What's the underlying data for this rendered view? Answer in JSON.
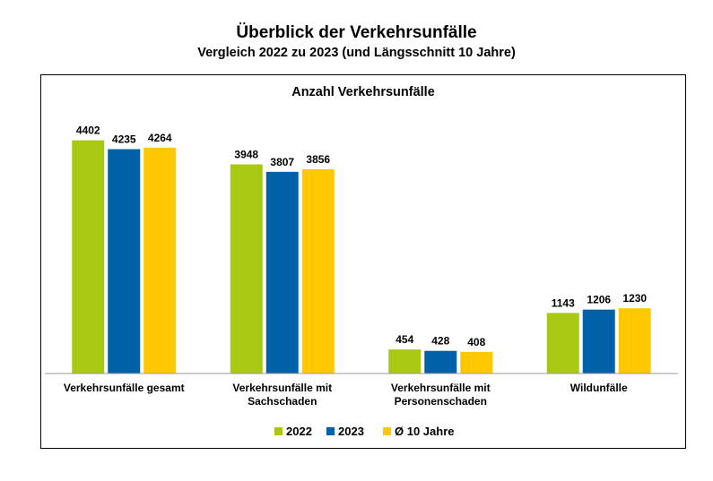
{
  "header": {
    "title": "Überblick der Verkehrsunfälle",
    "subtitle": "Vergleich 2022 zu 2023 (und Längsschnitt 10 Jahre)"
  },
  "chart_data": {
    "type": "bar",
    "title": "Anzahl Verkehrsunfälle",
    "categories": [
      [
        "Verkehrsunfälle gesamt"
      ],
      [
        "Verkehrsunfälle mit",
        "Sachschaden"
      ],
      [
        "Verkehrsunfälle mit",
        "Personenschaden"
      ],
      [
        "Wildunfälle"
      ]
    ],
    "series": [
      {
        "name": "2022",
        "color": "#A8C814",
        "values": [
          4402,
          3948,
          454,
          1143
        ]
      },
      {
        "name": "2023",
        "color": "#0060A8",
        "values": [
          4235,
          3807,
          428,
          1206
        ]
      },
      {
        "name": "Ø 10 Jahre",
        "color": "#FFC800",
        "values": [
          4264,
          3856,
          408,
          1230
        ]
      }
    ],
    "ylim": [
      0,
      4700
    ],
    "grid": false,
    "legend_position": "bottom"
  }
}
